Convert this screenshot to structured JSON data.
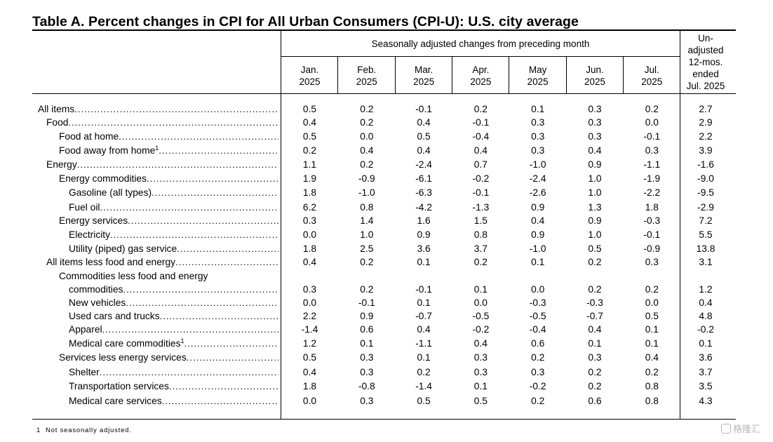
{
  "title": "Table A. Percent changes in CPI for All Urban Consumers (CPI-U): U.S. city average",
  "header": {
    "sa_label": "Seasonally adjusted changes from preceding month",
    "months": [
      {
        "m": "Jan.",
        "y": "2025"
      },
      {
        "m": "Feb.",
        "y": "2025"
      },
      {
        "m": "Mar.",
        "y": "2025"
      },
      {
        "m": "Apr.",
        "y": "2025"
      },
      {
        "m": "May",
        "y": "2025"
      },
      {
        "m": "Jun.",
        "y": "2025"
      },
      {
        "m": "Jul.",
        "y": "2025"
      }
    ],
    "unadjusted_lines": [
      "Un-",
      "adjusted",
      "12-mos.",
      "ended",
      "Jul. 2025"
    ]
  },
  "rows": [
    {
      "label": "All items",
      "indent": 0,
      "values": [
        "0.5",
        "0.2",
        "-0.1",
        "0.2",
        "0.1",
        "0.3",
        "0.2",
        "2.7"
      ]
    },
    {
      "label": "Food",
      "indent": 1,
      "values": [
        "0.4",
        "0.2",
        "0.4",
        "-0.1",
        "0.3",
        "0.3",
        "0.0",
        "2.9"
      ]
    },
    {
      "label": "Food at home",
      "indent": 2,
      "values": [
        "0.5",
        "0.0",
        "0.5",
        "-0.4",
        "0.3",
        "0.3",
        "-0.1",
        "2.2"
      ]
    },
    {
      "label": "Food away from home",
      "indent": 2,
      "footnote": "1",
      "values": [
        "0.2",
        "0.4",
        "0.4",
        "0.4",
        "0.3",
        "0.4",
        "0.3",
        "3.9"
      ]
    },
    {
      "label": "Energy",
      "indent": 1,
      "values": [
        "1.1",
        "0.2",
        "-2.4",
        "0.7",
        "-1.0",
        "0.9",
        "-1.1",
        "-1.6"
      ]
    },
    {
      "label": "Energy commodities",
      "indent": 2,
      "values": [
        "1.9",
        "-0.9",
        "-6.1",
        "-0.2",
        "-2.4",
        "1.0",
        "-1.9",
        "-9.0"
      ]
    },
    {
      "label": "Gasoline (all types)",
      "indent": 3,
      "values": [
        "1.8",
        "-1.0",
        "-6.3",
        "-0.1",
        "-2.6",
        "1.0",
        "-2.2",
        "-9.5"
      ]
    },
    {
      "label": "Fuel oil",
      "indent": 3,
      "values": [
        "6.2",
        "0.8",
        "-4.2",
        "-1.3",
        "0.9",
        "1.3",
        "1.8",
        "-2.9"
      ]
    },
    {
      "label": "Energy services",
      "indent": 2,
      "values": [
        "0.3",
        "1.4",
        "1.6",
        "1.5",
        "0.4",
        "0.9",
        "-0.3",
        "7.2"
      ]
    },
    {
      "label": "Electricity",
      "indent": 3,
      "values": [
        "0.0",
        "1.0",
        "0.9",
        "0.8",
        "0.9",
        "1.0",
        "-0.1",
        "5.5"
      ]
    },
    {
      "label": "Utility (piped) gas service",
      "indent": 3,
      "values": [
        "1.8",
        "2.5",
        "3.6",
        "3.7",
        "-1.0",
        "0.5",
        "-0.9",
        "13.8"
      ]
    },
    {
      "label": "All items less food and energy",
      "indent": 1,
      "values": [
        "0.4",
        "0.2",
        "0.1",
        "0.2",
        "0.1",
        "0.2",
        "0.3",
        "3.1"
      ]
    },
    {
      "label": "Commodities less food and energy",
      "indent": 2,
      "values": null
    },
    {
      "label": "commodities",
      "indent": 3,
      "values": [
        "0.3",
        "0.2",
        "-0.1",
        "0.1",
        "0.0",
        "0.2",
        "0.2",
        "1.2"
      ]
    },
    {
      "label": "New vehicles",
      "indent": 3,
      "values": [
        "0.0",
        "-0.1",
        "0.1",
        "0.0",
        "-0.3",
        "-0.3",
        "0.0",
        "0.4"
      ]
    },
    {
      "label": "Used cars and trucks",
      "indent": 3,
      "values": [
        "2.2",
        "0.9",
        "-0.7",
        "-0.5",
        "-0.5",
        "-0.7",
        "0.5",
        "4.8"
      ]
    },
    {
      "label": "Apparel",
      "indent": 3,
      "values": [
        "-1.4",
        "0.6",
        "0.4",
        "-0.2",
        "-0.4",
        "0.4",
        "0.1",
        "-0.2"
      ]
    },
    {
      "label": "Medical care commodities",
      "indent": 4,
      "footnote": "1",
      "values": [
        "1.2",
        "0.1",
        "-1.1",
        "0.4",
        "0.6",
        "0.1",
        "0.1",
        "0.1"
      ]
    },
    {
      "label": "Services less energy services",
      "indent": 2,
      "values": [
        "0.5",
        "0.3",
        "0.1",
        "0.3",
        "0.2",
        "0.3",
        "0.4",
        "3.6"
      ]
    },
    {
      "label": "Shelter",
      "indent": 4,
      "values": [
        "0.4",
        "0.3",
        "0.2",
        "0.3",
        "0.3",
        "0.2",
        "0.2",
        "3.7"
      ]
    },
    {
      "label": "Transportation services",
      "indent": 4,
      "values": [
        "1.8",
        "-0.8",
        "-1.4",
        "0.1",
        "-0.2",
        "0.2",
        "0.8",
        "3.5"
      ]
    },
    {
      "label": "Medical care services",
      "indent": 4,
      "values": [
        "0.0",
        "0.3",
        "0.5",
        "0.5",
        "0.2",
        "0.6",
        "0.8",
        "4.3"
      ]
    }
  ],
  "footnote": {
    "marker": "1",
    "text": "Not seasonally adjusted."
  },
  "watermark": {
    "icon": "logo-icon",
    "text": "格隆汇"
  }
}
